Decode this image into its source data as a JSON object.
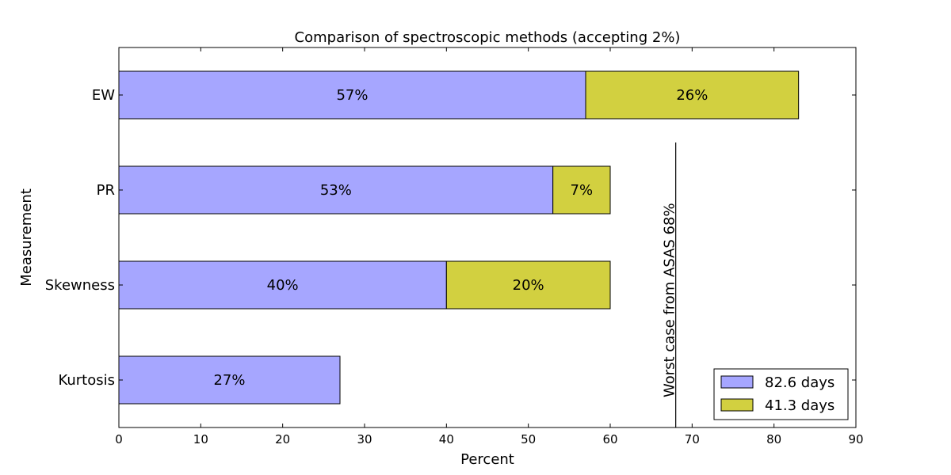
{
  "chart_data": {
    "type": "bar",
    "orientation": "horizontal",
    "stacked": true,
    "title": "Comparison of spectroscopic methods (accepting 2%)",
    "xlabel": "Percent",
    "ylabel": "Measurement",
    "xlim": [
      0,
      90
    ],
    "xticks": [
      0,
      10,
      20,
      30,
      40,
      50,
      60,
      70,
      80,
      90
    ],
    "categories": [
      "Kurtosis",
      "Skewness",
      "PR",
      "EW"
    ],
    "series": [
      {
        "name": "82.6 days",
        "color": "#a6a6ff",
        "values": [
          27,
          40,
          53,
          57
        ],
        "labels": [
          "27%",
          "40%",
          "53%",
          "57%"
        ]
      },
      {
        "name": "41.3 days",
        "color": "#d2d040",
        "values": [
          0,
          20,
          7,
          26
        ],
        "labels": [
          "",
          "20%",
          "7%",
          "26%"
        ]
      }
    ],
    "reference_line": {
      "x": 68,
      "label": "Worst case from ASAS 68%"
    },
    "legend": "bottom-right",
    "grid": false
  }
}
